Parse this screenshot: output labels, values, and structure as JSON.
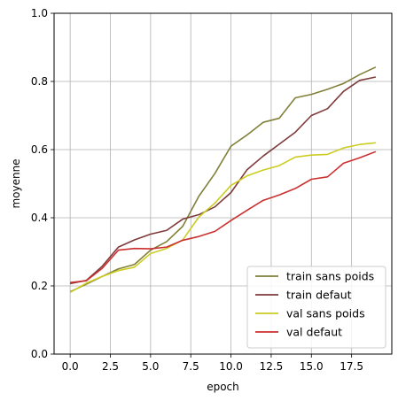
{
  "chart_data": {
    "type": "line",
    "xlabel": "epoch",
    "ylabel": "moyenne",
    "xlim": [
      -1,
      20
    ],
    "ylim": [
      0.0,
      1.0
    ],
    "x_ticks": [
      0.0,
      2.5,
      5.0,
      7.5,
      10.0,
      12.5,
      15.0,
      17.5
    ],
    "x_tick_labels": [
      "0.0",
      "2.5",
      "5.0",
      "7.5",
      "10.0",
      "12.5",
      "15.0",
      "17.5"
    ],
    "y_ticks": [
      0.0,
      0.2,
      0.4,
      0.6,
      0.8,
      1.0
    ],
    "y_tick_labels": [
      "0.0",
      "0.2",
      "0.4",
      "0.6",
      "0.8",
      "1.0"
    ],
    "grid": true,
    "legend_position": "bottom-right",
    "x": [
      0,
      1,
      2,
      3,
      4,
      5,
      6,
      7,
      8,
      9,
      10,
      11,
      12,
      13,
      14,
      15,
      16,
      17,
      18,
      19
    ],
    "series": [
      {
        "name": "train sans poids",
        "color": "#808039",
        "values": [
          0.183,
          0.205,
          0.228,
          0.25,
          0.263,
          0.305,
          0.33,
          0.375,
          0.463,
          0.53,
          0.61,
          0.643,
          0.68,
          0.692,
          0.752,
          0.762,
          0.777,
          0.794,
          0.82,
          0.842
        ]
      },
      {
        "name": "train defaut",
        "color": "#7f3a3a",
        "values": [
          0.207,
          0.216,
          0.258,
          0.314,
          0.335,
          0.352,
          0.363,
          0.396,
          0.409,
          0.432,
          0.474,
          0.541,
          0.581,
          0.616,
          0.651,
          0.7,
          0.72,
          0.771,
          0.803,
          0.813
        ]
      },
      {
        "name": "val sans poids",
        "color": "#cccc22",
        "values": [
          0.181,
          0.208,
          0.228,
          0.245,
          0.255,
          0.295,
          0.31,
          0.335,
          0.402,
          0.443,
          0.495,
          0.523,
          0.54,
          0.553,
          0.578,
          0.584,
          0.586,
          0.605,
          0.615,
          0.62
        ]
      },
      {
        "name": "val defaut",
        "color": "#cc2f2f",
        "values": [
          0.21,
          0.215,
          0.252,
          0.305,
          0.31,
          0.309,
          0.314,
          0.334,
          0.345,
          0.36,
          0.392,
          0.422,
          0.451,
          0.467,
          0.486,
          0.513,
          0.52,
          0.56,
          0.576,
          0.594
        ]
      }
    ]
  }
}
